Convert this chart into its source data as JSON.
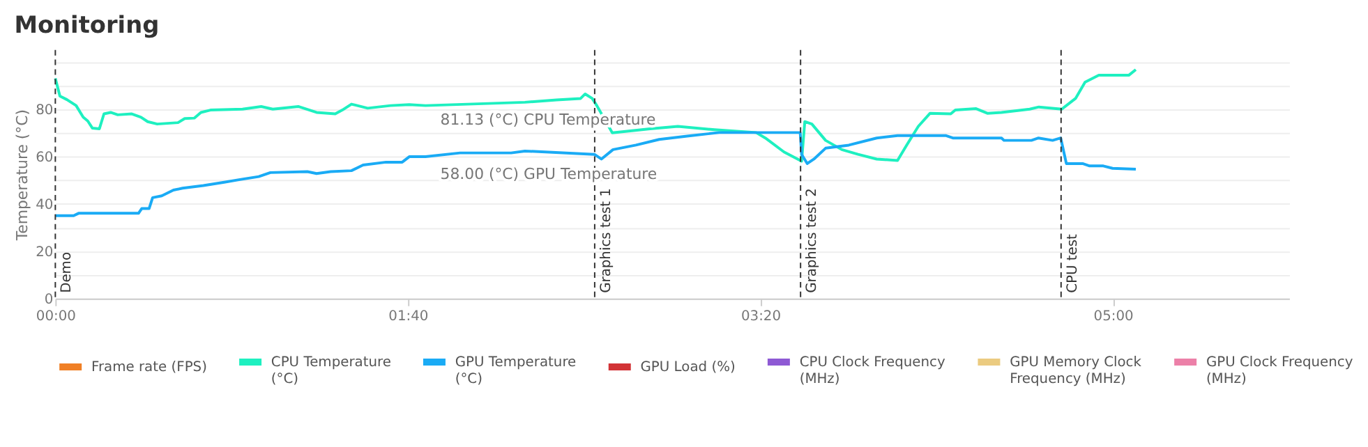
{
  "chart_data": {
    "type": "line",
    "title": "Monitoring",
    "ylabel": "Temperature (°C)",
    "xlim": [
      0,
      350
    ],
    "xticks": [
      {
        "value": 0,
        "label": "00:00"
      },
      {
        "value": 100,
        "label": "01:40"
      },
      {
        "value": 200,
        "label": "03:20"
      },
      {
        "value": 300,
        "label": "05:00"
      }
    ],
    "ylim": [
      0,
      105
    ],
    "yticks": [
      0,
      {
        "value": 10,
        "label": null
      },
      20,
      {
        "value": 30,
        "label": null
      },
      40,
      {
        "value": 50,
        "label": null
      },
      60,
      {
        "value": 70,
        "label": null
      },
      80,
      {
        "value": 90,
        "label": null
      },
      {
        "value": 100,
        "label": null
      }
    ],
    "grid": "y",
    "legend": "bottom",
    "line_style": "solid",
    "marker": "none",
    "series": [
      {
        "name": "Frame rate (FPS)",
        "color": "#f07f25"
      },
      {
        "name": "CPU Temperature (°C)",
        "color": "#1ef0c0",
        "x": [
          0,
          1.3,
          3.3,
          5.9,
          7.9,
          9.2,
          10.5,
          12.5,
          13.8,
          15.7,
          17.7,
          21.7,
          24.3,
          26.2,
          28.9,
          34.8,
          36.7,
          39.4,
          41.3,
          44,
          53.1,
          58.4,
          61.7,
          68.9,
          74.1,
          79.4,
          81.4,
          84,
          88.6,
          95.1,
          100.4,
          105,
          133.2,
          142.2,
          149,
          150.3,
          152.3,
          153.6,
          158,
          168.7,
          176.6,
          187,
          198.8,
          201.4,
          206.7,
          211.7,
          212.6,
          214.6,
          218.5,
          223.1,
          227.7,
          233,
          238.9,
          241.5,
          244.8,
          248.1,
          254,
          255.3,
          261.2,
          264.5,
          268.4,
          276.4,
          279,
          285.5,
          289.4,
          292.1,
          296,
          304.5,
          306.5
        ],
        "values": [
          93,
          85.5,
          84,
          81.5,
          76.6,
          75,
          72,
          71.7,
          78,
          78.6,
          77.6,
          78,
          76.6,
          74.7,
          73.7,
          74.3,
          76,
          76.2,
          78.6,
          79.6,
          80,
          81.1,
          80,
          81.1,
          78.6,
          78,
          79.6,
          82.1,
          80.4,
          81.5,
          81.9,
          81.5,
          82.9,
          83.9,
          84.5,
          86.4,
          84.5,
          81.5,
          70,
          71.7,
          72.7,
          71.3,
          70.1,
          67.8,
          61.9,
          58,
          74.7,
          73.7,
          66.8,
          62.9,
          60.9,
          58.9,
          58.3,
          64.8,
          72.7,
          78.2,
          78,
          79.6,
          80.2,
          78.2,
          78.6,
          80,
          80.9,
          80,
          84.5,
          91.4,
          94.3,
          94.3,
          96.7
        ]
      },
      {
        "name": "GPU Temperature (°C)",
        "color": "#1aabf5",
        "x": [
          0,
          5.2,
          6.6,
          23.6,
          24.5,
          26.6,
          27.6,
          30.2,
          33.5,
          36.1,
          42,
          47.9,
          51.8,
          57.7,
          61,
          71.5,
          74.1,
          78.1,
          84,
          87.3,
          93.8,
          98.4,
          100.4,
          105,
          114.8,
          129.3,
          133.2,
          152.9,
          154.9,
          158.2,
          164.7,
          171.3,
          179.2,
          188.3,
          211.3,
          211.7,
          213.3,
          215.2,
          218.5,
          225.1,
          233,
          238.9,
          252.7,
          254.6,
          268.4,
          269.1,
          276.9,
          278.9,
          282.9,
          285.2,
          286.8,
          291.4,
          293.4,
          297.3,
          299.9,
          306.5
        ],
        "values": [
          35,
          35,
          36,
          36,
          38,
          38,
          42.6,
          43.4,
          45.8,
          46.6,
          47.7,
          49.1,
          50.1,
          51.5,
          53.2,
          53.6,
          52.8,
          53.6,
          54,
          56.4,
          57.6,
          57.6,
          59.9,
          59.9,
          61.5,
          61.5,
          62.3,
          60.9,
          58.9,
          62.9,
          64.8,
          67.2,
          68.6,
          70.1,
          70.1,
          60.9,
          57,
          58.9,
          63.5,
          64.8,
          67.8,
          68.8,
          68.8,
          67.8,
          67.8,
          66.8,
          66.8,
          67.8,
          66.8,
          67.8,
          57,
          57,
          56,
          56,
          55,
          54.6
        ]
      },
      {
        "name": "GPU Load (%)",
        "color": "#d23336"
      },
      {
        "name": "CPU Clock Frequency (MHz)",
        "color": "#8e59d4"
      },
      {
        "name": "GPU Memory Clock Frequency (MHz)",
        "color": "#ebcb80"
      },
      {
        "name": "GPU Clock Frequency (MHz)",
        "color": "#ec80a8"
      }
    ],
    "ref_lines": [
      {
        "axis": "x",
        "value": 0,
        "label": "Demo",
        "color": "#333333",
        "line_style": "dashed"
      },
      {
        "axis": "x",
        "value": 153,
        "label": "Graphics test 1",
        "color": "#333333",
        "line_style": "dashed"
      },
      {
        "axis": "x",
        "value": 211.4,
        "label": "Graphics test 2",
        "color": "#333333",
        "line_style": "dashed"
      },
      {
        "axis": "x",
        "value": 285.3,
        "label": "CPU test",
        "color": "#333333",
        "line_style": "dashed"
      }
    ],
    "annotations": [
      {
        "text": "81.13 (°C) CPU Temperature",
        "x": 105.3,
        "y": 81.13
      },
      {
        "text": "58.00 (°C) GPU Temperature",
        "x": 105.3,
        "y": 58
      }
    ]
  }
}
